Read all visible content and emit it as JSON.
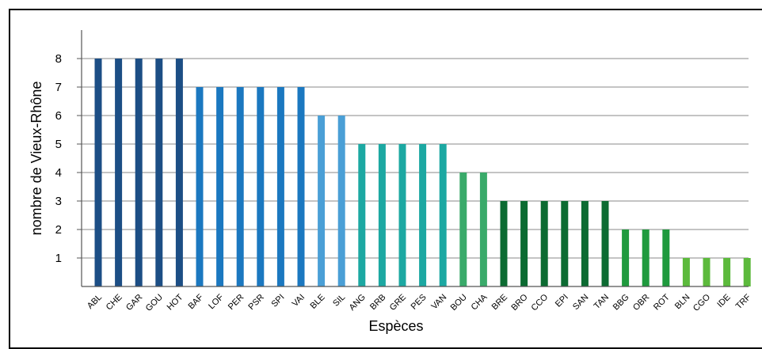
{
  "chart_data": {
    "type": "bar",
    "title": "",
    "xlabel": "Espèces",
    "ylabel": "nombre de Vieux-Rhône",
    "ylim": [
      0,
      8.5
    ],
    "yticks": [
      1,
      2,
      3,
      4,
      5,
      6,
      7,
      8
    ],
    "grid": true,
    "legend": "none",
    "categories": [
      "ABL",
      "CHE",
      "GAR",
      "GOU",
      "HOT",
      "BAF",
      "LOF",
      "PER",
      "PSR",
      "SPI",
      "VAI",
      "BLE",
      "SIL",
      "ANG",
      "BRB",
      "GRE",
      "PES",
      "VAN",
      "BOU",
      "CHA",
      "BRE",
      "BRO",
      "CCO",
      "EPI",
      "SAN",
      "TAN",
      "BBG",
      "OBR",
      "ROT",
      "BLN",
      "CGO",
      "IDE",
      "TRF"
    ],
    "values": [
      8,
      8,
      8,
      8,
      8,
      7,
      7,
      7,
      7,
      7,
      7,
      6,
      6,
      5,
      5,
      5,
      5,
      5,
      4,
      4,
      3,
      3,
      3,
      3,
      3,
      3,
      2,
      2,
      2,
      1,
      1,
      1,
      1
    ],
    "colors_by_value": {
      "8": "#1c4e85",
      "7": "#1b78c0",
      "6": "#4a9fd6",
      "5": "#1ca8a2",
      "4": "#3aaa6a",
      "3": "#0c6b32",
      "2": "#1f9a3e",
      "1": "#5cba3c"
    }
  }
}
